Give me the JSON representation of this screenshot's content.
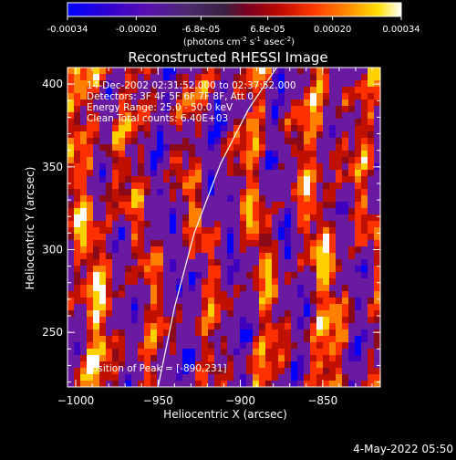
{
  "colorbar": {
    "tick_labels": [
      "-0.00034",
      "-0.00020",
      "-6.8e-05",
      "6.8e-05",
      "0.00020",
      "0.00034"
    ],
    "tick_values": [
      -0.00034,
      -0.0002,
      -6.8e-05,
      6.8e-05,
      0.0002,
      0.00034
    ],
    "range": [
      -0.00034,
      0.00034
    ],
    "units_prefix": "(photons cm",
    "units_exp1": "-2",
    "units_s": " s",
    "units_exp2": "-1",
    "units_asec": " asec",
    "units_exp3": "-2",
    "units_suffix": ")",
    "colors": [
      "#0000ff",
      "#4000c0",
      "#6a1aa0",
      "#5a2b78",
      "#8a0a1a",
      "#c01000",
      "#ff3000",
      "#ff8000",
      "#ffd000",
      "#ffffff"
    ]
  },
  "chart_data": {
    "type": "heatmap",
    "title": "Reconstructed RHESSI Image",
    "xlabel": "Heliocentric X (arcsec)",
    "ylabel": "Heliocentric Y (arcsec)",
    "xlim": [
      -1005,
      -815
    ],
    "ylim": [
      217,
      410
    ],
    "x_ticks": [
      -1000,
      -950,
      -900,
      -850
    ],
    "x_tick_labels": [
      "−1000",
      "−950",
      "−900",
      "−850"
    ],
    "y_ticks": [
      250,
      300,
      350,
      400
    ],
    "y_tick_labels": [
      "250",
      "300",
      "350",
      "400"
    ],
    "annotations": [
      "14-Dec-2002 02:31:52.000 to 02:37:52.000",
      "Detectors: 3F 4F 5F 6F 7F 8F, Att 0",
      "Energy Range: 25.0 - 50.0 keV",
      "Clean      Total counts: 6.40E+03"
    ],
    "peak_label": "Position of Peak = [-890,231]",
    "peak_position": [
      -890,
      231
    ],
    "grid": false,
    "colormap": "rainbow",
    "limb_curve": [
      [
        -950,
        217
      ],
      [
        -940,
        265
      ],
      [
        -928,
        310
      ],
      [
        -912,
        352
      ],
      [
        -895,
        385
      ],
      [
        -878,
        410
      ]
    ]
  },
  "footer": {
    "timestamp": "4-May-2022 05:50"
  }
}
